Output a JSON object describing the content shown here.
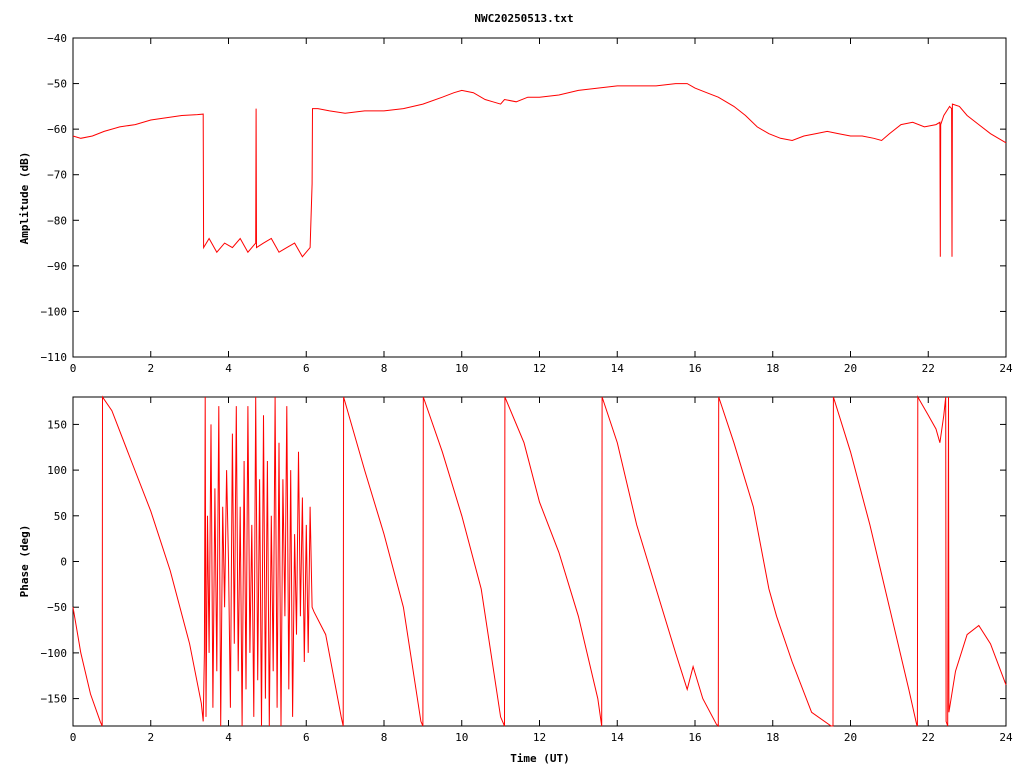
{
  "title": "NWC20250513.txt",
  "colors": {
    "series": "#ff0000",
    "frame": "#000000",
    "background": "#ffffff"
  },
  "chart_data": [
    {
      "type": "line",
      "ylabel": "Amplitude (dB)",
      "xlim": [
        0,
        24
      ],
      "ylim": [
        -110,
        -40
      ],
      "xticks": [
        0,
        2,
        4,
        6,
        8,
        10,
        12,
        14,
        16,
        18,
        20,
        22,
        24
      ],
      "yticks": [
        -110,
        -100,
        -90,
        -80,
        -70,
        -60,
        -50,
        -40
      ],
      "xtick_labels": [
        "0",
        "2",
        "4",
        "6",
        "8",
        "10",
        "12",
        "14",
        "16",
        "18",
        "20",
        "22",
        "24"
      ],
      "ytick_labels": [
        "−110",
        "−100",
        "−90",
        "−80",
        "−70",
        "−60",
        "−50",
        "−40"
      ],
      "grid": false,
      "series": [
        {
          "x": [
            0,
            0.2,
            0.5,
            0.8,
            1.2,
            1.6,
            2.0,
            2.4,
            2.8,
            3.2,
            3.35,
            3.36,
            3.5,
            3.7,
            3.9,
            4.1,
            4.3,
            4.5,
            4.7,
            4.71,
            4.72,
            4.9,
            5.1,
            5.3,
            5.5,
            5.7,
            5.9,
            6.1,
            6.15,
            6.16,
            6.3,
            6.6,
            7.0,
            7.5,
            8.0,
            8.5,
            9.0,
            9.5,
            9.8,
            10.0,
            10.3,
            10.6,
            10.8,
            11.0,
            11.1,
            11.4,
            11.7,
            12.0,
            12.5,
            13.0,
            13.5,
            14.0,
            14.5,
            15.0,
            15.5,
            15.8,
            16.0,
            16.3,
            16.6,
            17.0,
            17.3,
            17.6,
            17.9,
            18.2,
            18.5,
            18.8,
            19.1,
            19.4,
            19.7,
            20.0,
            20.3,
            20.6,
            20.8,
            21.0,
            21.3,
            21.6,
            21.9,
            22.2,
            22.3,
            22.31,
            22.32,
            22.4,
            22.55,
            22.6,
            22.61,
            22.62,
            22.8,
            23.0,
            23.3,
            23.6,
            24.0
          ],
          "y": [
            -61.5,
            -62,
            -61.5,
            -60.5,
            -59.5,
            -59,
            -58,
            -57.5,
            -57,
            -56.8,
            -56.7,
            -86,
            -84,
            -87,
            -85,
            -86,
            -84,
            -87,
            -85,
            -55.5,
            -86,
            -85,
            -84,
            -87,
            -86,
            -85,
            -88,
            -86,
            -72,
            -55.5,
            -55.5,
            -56,
            -56.5,
            -56,
            -56,
            -55.5,
            -54.5,
            -53,
            -52,
            -51.5,
            -52,
            -53.5,
            -54,
            -54.5,
            -53.5,
            -54,
            -53,
            -53,
            -52.5,
            -51.5,
            -51,
            -50.5,
            -50.5,
            -50.5,
            -50,
            -50,
            -51,
            -52,
            -53,
            -55,
            -57,
            -59.5,
            -61,
            -62,
            -62.5,
            -61.5,
            -61,
            -60.5,
            -61,
            -61.5,
            -61.5,
            -62,
            -62.5,
            -61,
            -59,
            -58.5,
            -59.5,
            -59,
            -58.5,
            -88,
            -59,
            -57,
            -55,
            -55.5,
            -88,
            -54.5,
            -55,
            -57,
            -59,
            -61,
            -63
          ]
        }
      ]
    },
    {
      "type": "line",
      "xlabel": "Time (UT)",
      "ylabel": "Phase (deg)",
      "xlim": [
        0,
        24
      ],
      "ylim": [
        -180,
        180
      ],
      "xticks": [
        0,
        2,
        4,
        6,
        8,
        10,
        12,
        14,
        16,
        18,
        20,
        22,
        24
      ],
      "yticks": [
        -150,
        -100,
        -50,
        0,
        50,
        100,
        150
      ],
      "xtick_labels": [
        "0",
        "2",
        "4",
        "6",
        "8",
        "10",
        "12",
        "14",
        "16",
        "18",
        "20",
        "22",
        "24"
      ],
      "ytick_labels": [
        "−150",
        "−100",
        "−50",
        "0",
        "50",
        "100",
        "150"
      ],
      "grid": false,
      "series": [
        {
          "x": [
            0,
            0.2,
            0.45,
            0.7,
            0.75,
            0.76,
            1.0,
            1.5,
            2.0,
            2.5,
            3.0,
            3.3,
            3.35,
            3.38,
            3.4,
            3.42,
            3.46,
            3.5,
            3.55,
            3.6,
            3.65,
            3.7,
            3.75,
            3.8,
            3.85,
            3.9,
            3.95,
            4.0,
            4.05,
            4.1,
            4.15,
            4.2,
            4.25,
            4.3,
            4.35,
            4.4,
            4.45,
            4.5,
            4.55,
            4.6,
            4.65,
            4.7,
            4.75,
            4.8,
            4.85,
            4.9,
            4.95,
            5.0,
            5.05,
            5.1,
            5.15,
            5.2,
            5.25,
            5.3,
            5.35,
            5.4,
            5.45,
            5.5,
            5.55,
            5.6,
            5.65,
            5.7,
            5.75,
            5.8,
            5.85,
            5.9,
            5.95,
            6.0,
            6.05,
            6.1,
            6.15,
            6.2,
            6.5,
            6.9,
            6.95,
            6.96,
            7.5,
            8.0,
            8.5,
            8.95,
            9.0,
            9.01,
            9.5,
            10.0,
            10.5,
            11.0,
            11.1,
            11.11,
            11.6,
            12.0,
            12.5,
            13.0,
            13.5,
            13.6,
            13.61,
            14.0,
            14.5,
            15.0,
            15.5,
            15.8,
            15.95,
            16.2,
            16.55,
            16.6,
            16.61,
            17.0,
            17.5,
            17.9,
            18.1,
            18.5,
            19.0,
            19.5,
            19.55,
            19.56,
            20.0,
            20.5,
            21.0,
            21.5,
            21.7,
            21.72,
            21.73,
            22.0,
            22.2,
            22.3,
            22.4,
            22.45,
            22.46,
            22.5,
            22.52,
            22.53,
            22.7,
            23.0,
            23.3,
            23.6,
            24.0
          ],
          "y": [
            -50,
            -100,
            -145,
            -175,
            -180,
            180,
            165,
            110,
            55,
            -10,
            -90,
            -155,
            -175,
            -100,
            180,
            -170,
            50,
            -100,
            150,
            -160,
            80,
            -120,
            170,
            -180,
            60,
            -50,
            100,
            0,
            -160,
            140,
            -90,
            170,
            -120,
            60,
            -180,
            110,
            -140,
            170,
            -100,
            40,
            -170,
            180,
            -130,
            90,
            -180,
            160,
            -150,
            110,
            -180,
            50,
            -120,
            180,
            -160,
            130,
            -180,
            90,
            -60,
            170,
            -140,
            100,
            -170,
            30,
            -80,
            120,
            -60,
            70,
            -110,
            40,
            -100,
            60,
            -50,
            -55,
            -80,
            -170,
            -180,
            180,
            100,
            30,
            -50,
            -175,
            -180,
            180,
            120,
            50,
            -30,
            -170,
            -180,
            180,
            130,
            65,
            10,
            -60,
            -150,
            -180,
            180,
            130,
            40,
            -30,
            -100,
            -140,
            -115,
            -150,
            -178,
            -180,
            180,
            130,
            60,
            -30,
            -60,
            -110,
            -165,
            -180,
            -180,
            180,
            120,
            40,
            -50,
            -140,
            -178,
            -180,
            180,
            160,
            145,
            130,
            160,
            180,
            -175,
            -180,
            180,
            -165,
            -120,
            -80,
            -70,
            -90,
            -135
          ]
        }
      ]
    }
  ]
}
